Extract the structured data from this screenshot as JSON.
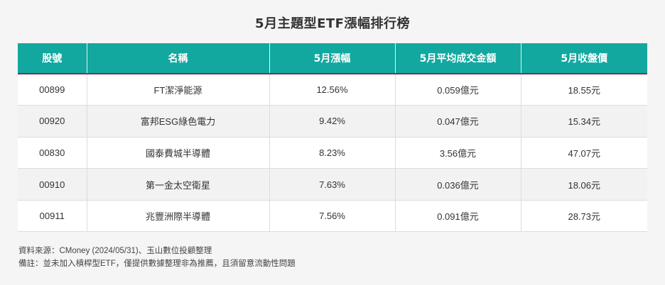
{
  "title": "5月主題型ETF漲幅排行榜",
  "table": {
    "headers": [
      "股號",
      "名稱",
      "5月漲幅",
      "5月平均成交金額",
      "5月收盤價"
    ],
    "rows": [
      [
        "00899",
        "FT潔淨能源",
        "12.56%",
        "0.059億元",
        "18.55元"
      ],
      [
        "00920",
        "富邦ESG綠色電力",
        "9.42%",
        "0.047億元",
        "15.34元"
      ],
      [
        "00830",
        "國泰費城半導體",
        "8.23%",
        "3.56億元",
        "47.07元"
      ],
      [
        "00910",
        "第一金太空衛星",
        "7.63%",
        "0.036億元",
        "18.06元"
      ],
      [
        "00911",
        "兆豐洲際半導體",
        "7.56%",
        "0.091億元",
        "28.73元"
      ]
    ]
  },
  "footnotes": {
    "source": "資料來源：CMoney (2024/05/31)、玉山數位投顧整理",
    "note": "備註：並未加入槓桿型ETF，僅提供數據整理非為推薦，且須留意流動性問題"
  },
  "colors": {
    "header_bg": "#12a8a0",
    "header_underline": "#8a2a5a"
  }
}
